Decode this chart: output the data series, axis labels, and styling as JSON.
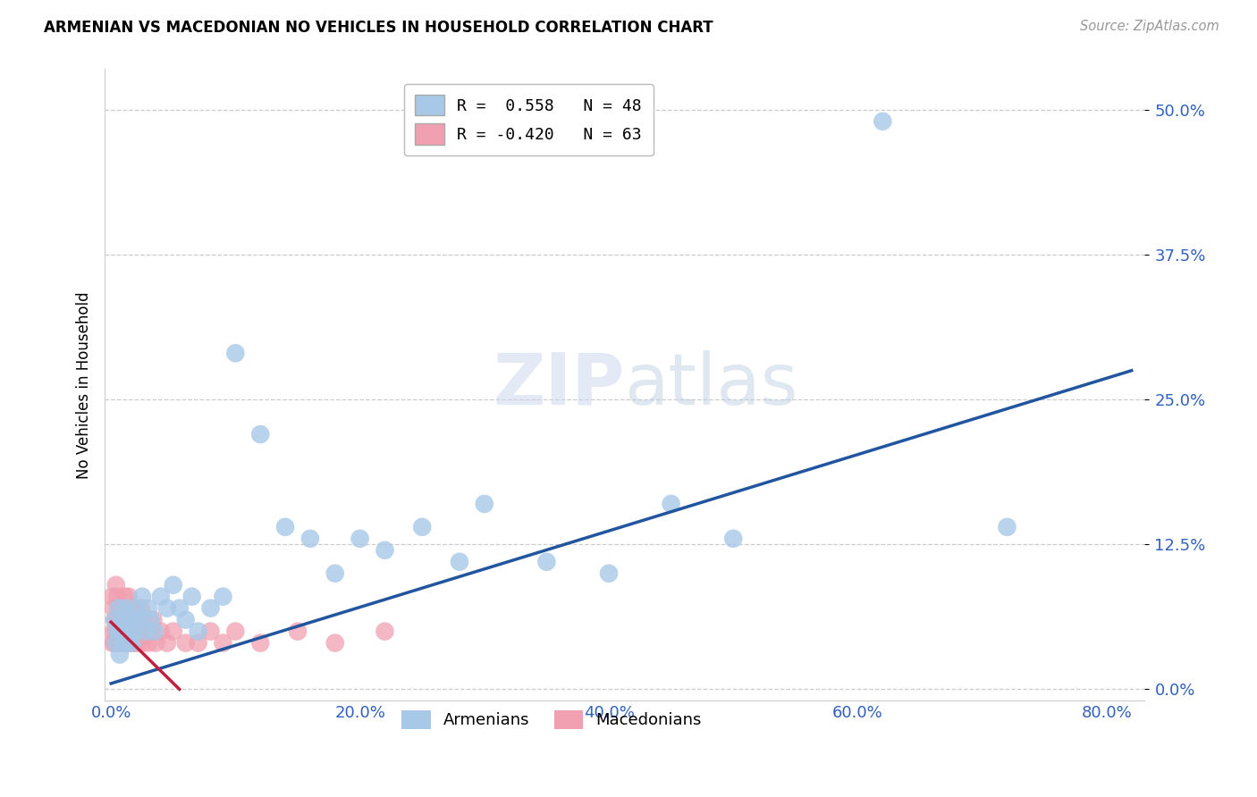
{
  "title": "ARMENIAN VS MACEDONIAN NO VEHICLES IN HOUSEHOLD CORRELATION CHART",
  "source": "Source: ZipAtlas.com",
  "ylabel": "No Vehicles in Household",
  "xlabel_vals": [
    0.0,
    0.2,
    0.4,
    0.6,
    0.8
  ],
  "ylabel_vals": [
    0.0,
    0.125,
    0.25,
    0.375,
    0.5
  ],
  "xlim": [
    -0.005,
    0.83
  ],
  "ylim": [
    -0.01,
    0.535
  ],
  "armenian_R": 0.558,
  "armenian_N": 48,
  "macedonian_R": -0.42,
  "macedonian_N": 63,
  "armenian_color": "#a8c8e8",
  "armenian_line_color": "#2255a0",
  "macedonian_color": "#f0a0b0",
  "macedonian_line_color": "#c02040",
  "background_color": "#ffffff",
  "watermark_zip": "ZIP",
  "watermark_atlas": "atlas",
  "arm_line_x0": 0.0,
  "arm_line_x1": 0.82,
  "arm_line_y0": 0.005,
  "arm_line_y1": 0.275,
  "mac_line_x0": 0.0,
  "mac_line_x1": 0.055,
  "mac_line_y0": 0.058,
  "mac_line_y1": 0.0,
  "armenian_x": [
    0.003,
    0.004,
    0.005,
    0.006,
    0.007,
    0.008,
    0.009,
    0.01,
    0.011,
    0.012,
    0.013,
    0.015,
    0.016,
    0.017,
    0.018,
    0.019,
    0.02,
    0.022,
    0.025,
    0.028,
    0.03,
    0.032,
    0.035,
    0.04,
    0.045,
    0.05,
    0.055,
    0.06,
    0.065,
    0.07,
    0.08,
    0.09,
    0.1,
    0.12,
    0.14,
    0.16,
    0.18,
    0.2,
    0.22,
    0.25,
    0.28,
    0.3,
    0.35,
    0.4,
    0.45,
    0.5,
    0.62,
    0.72
  ],
  "armenian_y": [
    0.06,
    0.04,
    0.05,
    0.07,
    0.03,
    0.05,
    0.04,
    0.06,
    0.05,
    0.07,
    0.04,
    0.06,
    0.05,
    0.04,
    0.06,
    0.05,
    0.07,
    0.06,
    0.08,
    0.05,
    0.07,
    0.06,
    0.05,
    0.08,
    0.07,
    0.09,
    0.07,
    0.06,
    0.08,
    0.05,
    0.07,
    0.08,
    0.29,
    0.22,
    0.14,
    0.13,
    0.1,
    0.13,
    0.12,
    0.14,
    0.11,
    0.16,
    0.11,
    0.1,
    0.16,
    0.13,
    0.49,
    0.14
  ],
  "macedonian_x": [
    0.001,
    0.001,
    0.002,
    0.002,
    0.003,
    0.003,
    0.004,
    0.004,
    0.005,
    0.005,
    0.006,
    0.006,
    0.007,
    0.007,
    0.008,
    0.008,
    0.009,
    0.009,
    0.01,
    0.01,
    0.011,
    0.011,
    0.012,
    0.012,
    0.013,
    0.013,
    0.014,
    0.014,
    0.015,
    0.015,
    0.016,
    0.016,
    0.017,
    0.017,
    0.018,
    0.018,
    0.019,
    0.019,
    0.02,
    0.02,
    0.021,
    0.022,
    0.023,
    0.024,
    0.025,
    0.026,
    0.028,
    0.03,
    0.032,
    0.034,
    0.036,
    0.04,
    0.045,
    0.05,
    0.06,
    0.07,
    0.08,
    0.09,
    0.1,
    0.12,
    0.15,
    0.18,
    0.22
  ],
  "macedonian_y": [
    0.04,
    0.08,
    0.05,
    0.07,
    0.04,
    0.06,
    0.05,
    0.09,
    0.06,
    0.08,
    0.05,
    0.07,
    0.04,
    0.06,
    0.05,
    0.07,
    0.04,
    0.06,
    0.05,
    0.07,
    0.04,
    0.08,
    0.05,
    0.06,
    0.04,
    0.07,
    0.05,
    0.08,
    0.04,
    0.06,
    0.05,
    0.07,
    0.04,
    0.06,
    0.05,
    0.07,
    0.04,
    0.06,
    0.05,
    0.07,
    0.04,
    0.06,
    0.05,
    0.07,
    0.04,
    0.06,
    0.05,
    0.04,
    0.05,
    0.06,
    0.04,
    0.05,
    0.04,
    0.05,
    0.04,
    0.04,
    0.05,
    0.04,
    0.05,
    0.04,
    0.05,
    0.04,
    0.05
  ]
}
